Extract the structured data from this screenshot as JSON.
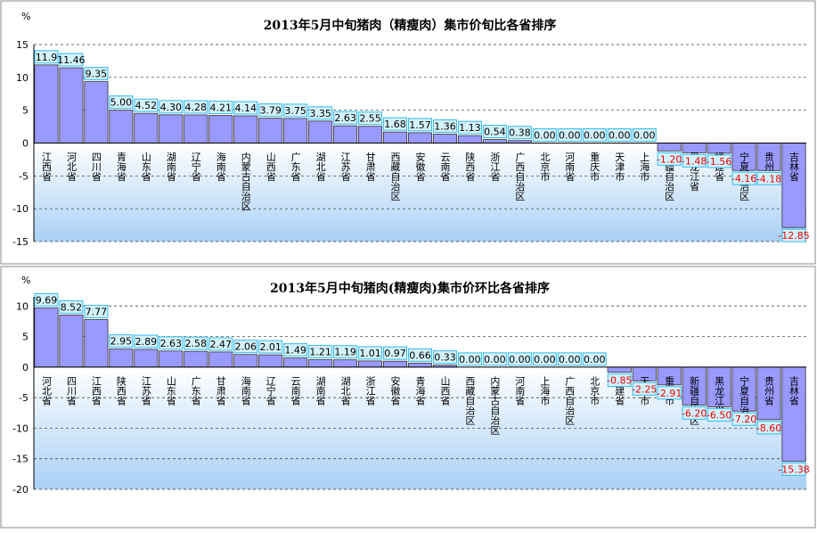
{
  "chart_data": [
    {
      "type": "bar",
      "title": "2013年5月中旬猪肉（精瘦肉）集市价旬比各省排序",
      "y_label": "%",
      "categories": [
        "江西省",
        "河北省",
        "四川省",
        "青海省",
        "山东省",
        "湖南省",
        "辽宁省",
        "海南省",
        "内蒙古自治区",
        "山西省",
        "广东省",
        "湖北省",
        "江苏省",
        "甘肃省",
        "西藏自治区",
        "安徽省",
        "云南省",
        "陕西省",
        "浙江省",
        "广西自治区",
        "北京市",
        "河南省",
        "重庆市",
        "天津市",
        "上海市",
        "新疆自治区",
        "黑龙江省",
        "福建省",
        "宁夏自治区",
        "贵州省",
        "吉林省"
      ],
      "values": [
        11.9,
        11.46,
        9.35,
        5.0,
        4.52,
        4.3,
        4.28,
        4.21,
        4.14,
        3.79,
        3.75,
        3.35,
        2.63,
        2.55,
        1.68,
        1.57,
        1.36,
        1.13,
        0.54,
        0.38,
        0,
        0,
        0,
        0,
        0,
        -1.2,
        -1.48,
        -1.56,
        -4.16,
        -4.18,
        -12.85
      ],
      "value_labels": [
        "11.9",
        "11.46",
        "9.35",
        "5.00",
        "4.52",
        "4.30",
        "4.28",
        "4.21",
        "4.14",
        "3.79",
        "3.75",
        "3.35",
        "2.63",
        "2.55",
        "1.68",
        "1.57",
        "1.36",
        "1.13",
        "0.54",
        "0.38",
        "0.00",
        "0.00",
        "0.00",
        "0.00",
        "0.00",
        "-1.20",
        "-1.48",
        "-1.56",
        "-4.16",
        "-4.18",
        "-12.85"
      ],
      "color": "#9999ff",
      "ylim": [
        -15,
        15
      ],
      "yticks": [
        -15,
        -10,
        -5,
        0,
        5,
        10,
        15
      ],
      "grid": true
    },
    {
      "type": "bar",
      "title": "2013年5月中旬猪肉(精瘦肉)集市价环比各省排序",
      "y_label": "%",
      "categories": [
        "河北省",
        "四川省",
        "江西省",
        "陕西省",
        "江苏省",
        "山东省",
        "广东省",
        "甘肃省",
        "海南省",
        "辽宁省",
        "云南省",
        "湖南省",
        "湖北省",
        "浙江省",
        "安徽省",
        "青海省",
        "山西省",
        "西藏自治区",
        "内蒙古自治区",
        "河南省",
        "上海市",
        "广西自治区",
        "北京市",
        "福建省",
        "天津市",
        "重庆市",
        "新疆自治区",
        "黑龙江省",
        "宁夏自治区",
        "贵州省",
        "吉林省"
      ],
      "values": [
        9.69,
        8.52,
        7.77,
        2.95,
        2.89,
        2.63,
        2.58,
        2.47,
        2.06,
        2.01,
        1.49,
        1.21,
        1.19,
        1.01,
        0.97,
        0.66,
        0.33,
        0,
        0,
        0,
        0,
        0,
        0,
        -0.85,
        -2.25,
        -2.91,
        -6.2,
        -6.5,
        -7.2,
        -8.6,
        -15.38
      ],
      "value_labels": [
        "9.69",
        "8.52",
        "7.77",
        "2.95",
        "2.89",
        "2.63",
        "2.58",
        "2.47",
        "2.06",
        "2.01",
        "1.49",
        "1.21",
        "1.19",
        "1.01",
        "0.97",
        "0.66",
        "0.33",
        "0.00",
        "0.00",
        "0.00",
        "0.00",
        "0.00",
        "0.00",
        "-0.85",
        "-2.25",
        "-2.91",
        "-6.20",
        "-6.50",
        "-7.20",
        "-8.60",
        "-15.38"
      ],
      "color": "#9999ff",
      "ylim": [
        -20,
        11.5
      ],
      "yticks": [
        -20,
        -15,
        -10,
        -5,
        0,
        5,
        10
      ],
      "grid": true
    }
  ]
}
